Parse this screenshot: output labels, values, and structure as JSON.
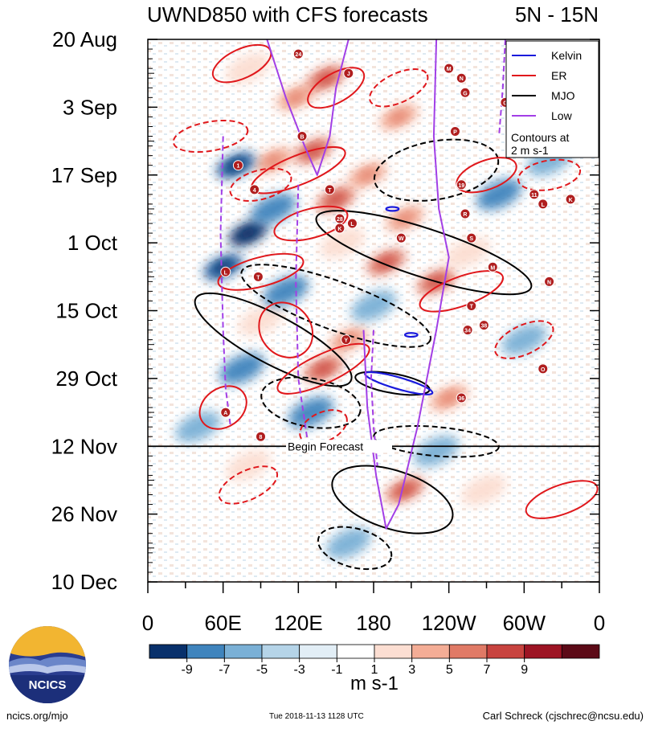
{
  "chart_data": {
    "type": "heatmap",
    "title": "UWND850 with CFS forecasts",
    "region": "5N - 15N",
    "y_ticks": [
      {
        "label": "20 Aug",
        "day": 0
      },
      {
        "label": "3 Sep",
        "day": 14
      },
      {
        "label": "17 Sep",
        "day": 28
      },
      {
        "label": "1 Oct",
        "day": 42
      },
      {
        "label": "15 Oct",
        "day": 56
      },
      {
        "label": "29 Oct",
        "day": 70
      },
      {
        "label": "12 Nov",
        "day": 84
      },
      {
        "label": "26 Nov",
        "day": 98
      },
      {
        "label": "10 Dec",
        "day": 112
      }
    ],
    "ylim": [
      0,
      112
    ],
    "x_ticks": [
      {
        "label": "0",
        "lon": 0
      },
      {
        "label": "60E",
        "lon": 60
      },
      {
        "label": "120E",
        "lon": 120
      },
      {
        "label": "180",
        "lon": 180
      },
      {
        "label": "120W",
        "lon": 240
      },
      {
        "label": "60W",
        "lon": 300
      },
      {
        "label": "0",
        "lon": 360
      }
    ],
    "xlim": [
      0,
      360
    ],
    "forecast_start": {
      "label": "Begin Forecast",
      "day": 84
    },
    "legend": {
      "position": "top-right",
      "entries": [
        {
          "name": "Kelvin",
          "color": "#1a1adc",
          "style": "solid"
        },
        {
          "name": "ER",
          "color": "#e0181c",
          "style": "solid"
        },
        {
          "name": "MJO",
          "color": "#000000",
          "style": "solid"
        },
        {
          "name": "Low",
          "color": "#a23fe6",
          "style": "solid"
        }
      ],
      "note_line1": "Contours at",
      "note_line2": "2 m s-1"
    },
    "colorbar": {
      "levels": [
        -9,
        -7,
        -5,
        -3,
        -1,
        1,
        3,
        5,
        7,
        9
      ],
      "labels": [
        "-9",
        "-7",
        "-5",
        "-3",
        "-1",
        "1",
        "3",
        "5",
        "7",
        "9"
      ],
      "colors": [
        "#08306b",
        "#1f5a9c",
        "#3f84bd",
        "#7ab0d6",
        "#b5d4e8",
        "#e2eef6",
        "#ffffff",
        "#fcded2",
        "#f4ad96",
        "#e07a66",
        "#c8433f",
        "#9d1424",
        "#5c0a17"
      ],
      "units": "m s-1"
    },
    "anomaly_blobs": [
      {
        "lon": 118,
        "day": 12,
        "value": 7
      },
      {
        "lon": 142,
        "day": 8,
        "value": 9
      },
      {
        "lon": 80,
        "day": 6,
        "value": 5
      },
      {
        "lon": 100,
        "day": 25,
        "value": 7
      },
      {
        "lon": 132,
        "day": 23,
        "value": 9
      },
      {
        "lon": 150,
        "day": 33,
        "value": 9
      },
      {
        "lon": 175,
        "day": 28,
        "value": 7
      },
      {
        "lon": 190,
        "day": 46,
        "value": 9
      },
      {
        "lon": 230,
        "day": 50,
        "value": 9
      },
      {
        "lon": 205,
        "day": 37,
        "value": 7
      },
      {
        "lon": 255,
        "day": 44,
        "value": 5
      },
      {
        "lon": 140,
        "day": 68,
        "value": 9
      },
      {
        "lon": 160,
        "day": 62,
        "value": 7
      },
      {
        "lon": 240,
        "day": 74,
        "value": 7
      },
      {
        "lon": 205,
        "day": 93,
        "value": 9
      },
      {
        "lon": 268,
        "day": 93,
        "value": 5
      },
      {
        "lon": 80,
        "day": 88,
        "value": 5
      },
      {
        "lon": 90,
        "day": 58,
        "value": 5
      },
      {
        "lon": 200,
        "day": 16,
        "value": 7
      },
      {
        "lon": 155,
        "day": 42,
        "value": 5
      },
      {
        "lon": 80,
        "day": 40,
        "value": -9
      },
      {
        "lon": 70,
        "day": 26,
        "value": -7
      },
      {
        "lon": 60,
        "day": 47,
        "value": -7
      },
      {
        "lon": 110,
        "day": 52,
        "value": -5
      },
      {
        "lon": 75,
        "day": 68,
        "value": -5
      },
      {
        "lon": 130,
        "day": 77,
        "value": -5
      },
      {
        "lon": 180,
        "day": 55,
        "value": -3
      },
      {
        "lon": 280,
        "day": 32,
        "value": -5
      },
      {
        "lon": 320,
        "day": 25,
        "value": -3
      },
      {
        "lon": 100,
        "day": 35,
        "value": -5
      },
      {
        "lon": 160,
        "day": 104,
        "value": -3
      },
      {
        "lon": 300,
        "day": 62,
        "value": -3
      },
      {
        "lon": 40,
        "day": 80,
        "value": -3
      },
      {
        "lon": 230,
        "day": 85,
        "value": -3
      }
    ],
    "contours": [
      {
        "wave": "MJO",
        "color": "#000000",
        "dashed": false,
        "lon": 220,
        "day": 44,
        "rlon": 90,
        "rday": 5,
        "tilt": 18
      },
      {
        "wave": "MJO",
        "color": "#000000",
        "dashed": false,
        "lon": 100,
        "day": 62,
        "rlon": 70,
        "rday": 5,
        "tilt": 28
      },
      {
        "wave": "MJO",
        "color": "#000000",
        "dashed": false,
        "lon": 195,
        "day": 95,
        "rlon": 50,
        "rday": 6,
        "tilt": 18
      },
      {
        "wave": "MJO",
        "color": "#000000",
        "dashed": false,
        "lon": 195,
        "day": 71,
        "rlon": 30,
        "rday": 2,
        "tilt": 10
      },
      {
        "wave": "MJO",
        "color": "#000000",
        "dashed": true,
        "lon": 150,
        "day": 55,
        "rlon": 80,
        "rday": 5,
        "tilt": 20
      },
      {
        "wave": "MJO",
        "color": "#000000",
        "dashed": true,
        "lon": 230,
        "day": 27,
        "rlon": 50,
        "rday": 6,
        "tilt": -10
      },
      {
        "wave": "MJO",
        "color": "#000000",
        "dashed": true,
        "lon": 130,
        "day": 75,
        "rlon": 40,
        "rday": 5,
        "tilt": 10
      },
      {
        "wave": "MJO",
        "color": "#000000",
        "dashed": true,
        "lon": 230,
        "day": 83,
        "rlon": 50,
        "rday": 3,
        "tilt": 5
      },
      {
        "wave": "MJO",
        "color": "#000000",
        "dashed": true,
        "lon": 165,
        "day": 105,
        "rlon": 30,
        "rday": 4,
        "tilt": 15
      },
      {
        "wave": "ER",
        "color": "#e0181c",
        "dashed": false,
        "lon": 120,
        "day": 27,
        "rlon": 40,
        "rday": 3,
        "tilt": -22
      },
      {
        "wave": "ER",
        "color": "#e0181c",
        "dashed": false,
        "lon": 130,
        "day": 38,
        "rlon": 30,
        "rday": 3,
        "tilt": -15
      },
      {
        "wave": "ER",
        "color": "#e0181c",
        "dashed": false,
        "lon": 90,
        "day": 48,
        "rlon": 35,
        "rday": 3,
        "tilt": -15
      },
      {
        "wave": "ER",
        "color": "#e0181c",
        "dashed": false,
        "lon": 140,
        "day": 68,
        "rlon": 40,
        "rday": 3,
        "tilt": -25
      },
      {
        "wave": "ER",
        "color": "#e0181c",
        "dashed": false,
        "lon": 270,
        "day": 28,
        "rlon": 25,
        "rday": 3,
        "tilt": -20
      },
      {
        "wave": "ER",
        "color": "#e0181c",
        "dashed": false,
        "lon": 250,
        "day": 52,
        "rlon": 35,
        "rday": 3,
        "tilt": -20
      },
      {
        "wave": "ER",
        "color": "#e0181c",
        "dashed": false,
        "lon": 110,
        "day": 60,
        "rlon": 20,
        "rday": 6,
        "tilt": -40
      },
      {
        "wave": "ER",
        "color": "#e0181c",
        "dashed": false,
        "lon": 75,
        "day": 5,
        "rlon": 25,
        "rday": 3,
        "tilt": -25
      },
      {
        "wave": "ER",
        "color": "#e0181c",
        "dashed": false,
        "lon": 150,
        "day": 10,
        "rlon": 25,
        "rday": 3,
        "tilt": -30
      },
      {
        "wave": "ER",
        "color": "#e0181c",
        "dashed": false,
        "lon": 330,
        "day": 95,
        "rlon": 30,
        "rday": 3,
        "tilt": -20
      },
      {
        "wave": "ER",
        "color": "#e0181c",
        "dashed": false,
        "lon": 60,
        "day": 76,
        "rlon": 20,
        "rday": 4,
        "tilt": -35
      },
      {
        "wave": "ER",
        "color": "#e0181c",
        "dashed": true,
        "lon": 90,
        "day": 30,
        "rlon": 25,
        "rday": 3,
        "tilt": -15
      },
      {
        "wave": "ER",
        "color": "#e0181c",
        "dashed": true,
        "lon": 300,
        "day": 62,
        "rlon": 25,
        "rday": 3,
        "tilt": -25
      },
      {
        "wave": "ER",
        "color": "#e0181c",
        "dashed": true,
        "lon": 200,
        "day": 10,
        "rlon": 25,
        "rday": 3,
        "tilt": -25
      },
      {
        "wave": "ER",
        "color": "#e0181c",
        "dashed": true,
        "lon": 80,
        "day": 92,
        "rlon": 25,
        "rday": 3,
        "tilt": -25
      },
      {
        "wave": "ER",
        "color": "#e0181c",
        "dashed": true,
        "lon": 50,
        "day": 20,
        "rlon": 30,
        "rday": 3,
        "tilt": -10
      },
      {
        "wave": "ER",
        "color": "#e0181c",
        "dashed": true,
        "lon": 140,
        "day": 80,
        "rlon": 20,
        "rday": 3,
        "tilt": -25
      },
      {
        "wave": "ER",
        "color": "#e0181c",
        "dashed": true,
        "lon": 320,
        "day": 28,
        "rlon": 25,
        "rday": 3,
        "tilt": -10
      },
      {
        "wave": "Kelvin",
        "color": "#1a1adc",
        "dashed": false,
        "lon": 200,
        "day": 71,
        "rlon": 28,
        "rday": 1.2,
        "tilt": 16
      },
      {
        "wave": "Kelvin",
        "color": "#1a1adc",
        "dashed": false,
        "lon": 195,
        "day": 35,
        "rlon": 5,
        "rday": 0.4,
        "tilt": 0
      },
      {
        "wave": "Kelvin",
        "color": "#1a1adc",
        "dashed": false,
        "lon": 210,
        "day": 61,
        "rlon": 5,
        "rday": 0.4,
        "tilt": 0
      }
    ],
    "low_paths": [
      {
        "dashed": false,
        "points": [
          [
            230,
            0
          ],
          [
            228,
            20
          ],
          [
            232,
            35
          ],
          [
            240,
            45
          ],
          [
            230,
            60
          ],
          [
            215,
            80
          ],
          [
            200,
            96
          ],
          [
            190,
            101
          ],
          [
            182,
            90
          ],
          [
            175,
            76
          ],
          [
            172,
            60
          ]
        ]
      },
      {
        "dashed": false,
        "points": [
          [
            95,
            0
          ],
          [
            110,
            12
          ],
          [
            125,
            22
          ],
          [
            135,
            28
          ],
          [
            145,
            20
          ],
          [
            150,
            10
          ],
          [
            160,
            0
          ]
        ]
      },
      {
        "dashed": true,
        "points": [
          [
            60,
            20
          ],
          [
            58,
            40
          ],
          [
            60,
            60
          ],
          [
            62,
            72
          ],
          [
            66,
            80
          ]
        ]
      },
      {
        "dashed": true,
        "points": [
          [
            120,
            30
          ],
          [
            118,
            50
          ],
          [
            120,
            70
          ],
          [
            128,
            84
          ]
        ]
      },
      {
        "dashed": true,
        "points": [
          [
            285,
            0
          ],
          [
            283,
            10
          ],
          [
            280,
            20
          ]
        ]
      },
      {
        "dashed": true,
        "points": [
          [
            180,
            60
          ],
          [
            178,
            70
          ],
          [
            180,
            80
          ],
          [
            183,
            88
          ]
        ]
      }
    ],
    "storm_markers": [
      {
        "label": "24",
        "lon": 120,
        "day": 3
      },
      {
        "label": "J",
        "lon": 160,
        "day": 7
      },
      {
        "label": "M",
        "lon": 240,
        "day": 6
      },
      {
        "label": "N",
        "lon": 250,
        "day": 8
      },
      {
        "label": "G",
        "lon": 253,
        "day": 11
      },
      {
        "label": "G",
        "lon": 285,
        "day": 13
      },
      {
        "label": "P",
        "lon": 245,
        "day": 19
      },
      {
        "label": "B",
        "lon": 123,
        "day": 20
      },
      {
        "label": "1",
        "lon": 72,
        "day": 26
      },
      {
        "label": "4",
        "lon": 85,
        "day": 31
      },
      {
        "label": "T",
        "lon": 145,
        "day": 31
      },
      {
        "label": "19",
        "lon": 250,
        "day": 30
      },
      {
        "label": "11",
        "lon": 308,
        "day": 32
      },
      {
        "label": "L",
        "lon": 315,
        "day": 34
      },
      {
        "label": "K",
        "lon": 337,
        "day": 33
      },
      {
        "label": "28",
        "lon": 153,
        "day": 37
      },
      {
        "label": "K",
        "lon": 153,
        "day": 39
      },
      {
        "label": "L",
        "lon": 163,
        "day": 38
      },
      {
        "label": "R",
        "lon": 253,
        "day": 36
      },
      {
        "label": "W",
        "lon": 202,
        "day": 41
      },
      {
        "label": "S",
        "lon": 258,
        "day": 41
      },
      {
        "label": "L",
        "lon": 62,
        "day": 48
      },
      {
        "label": "T",
        "lon": 88,
        "day": 49
      },
      {
        "label": "M",
        "lon": 275,
        "day": 47
      },
      {
        "label": "N",
        "lon": 320,
        "day": 50
      },
      {
        "label": "T",
        "lon": 258,
        "day": 55
      },
      {
        "label": "34",
        "lon": 255,
        "day": 60
      },
      {
        "label": "38",
        "lon": 268,
        "day": 59
      },
      {
        "label": "Y",
        "lon": 158,
        "day": 62
      },
      {
        "label": "O",
        "lon": 315,
        "day": 68
      },
      {
        "label": "36",
        "lon": 250,
        "day": 74
      },
      {
        "label": "A",
        "lon": 62,
        "day": 77
      },
      {
        "label": "8",
        "lon": 90,
        "day": 82
      }
    ]
  },
  "footer": {
    "url": "ncics.org/mjo",
    "timestamp": "Tue 2018-11-13 1128 UTC",
    "author": "Carl Schreck (cjschrec@ncsu.edu)",
    "logo_text": "NCICS"
  }
}
